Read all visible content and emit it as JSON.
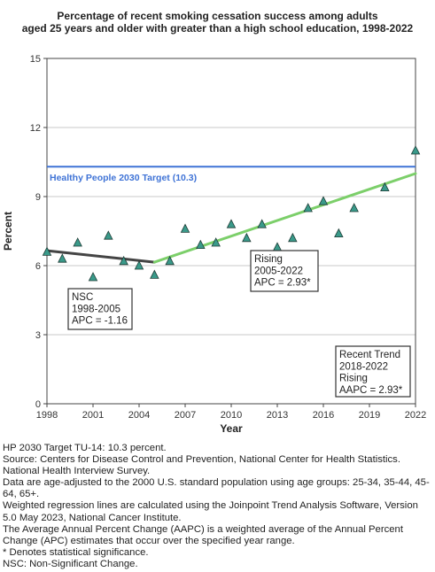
{
  "chart_data": {
    "type": "line",
    "title": "Percentage of recent smoking cessation success among adults aged 25 years and older with greater than a high school education, 1998-2022",
    "title_lines": [
      "Percentage of recent smoking cessation success among adults",
      "aged 25 years and older with greater than a high school education, 1998-2022"
    ],
    "xlabel": "Year",
    "ylabel": "Percent",
    "xlim": [
      1998,
      2022
    ],
    "ylim": [
      0,
      15
    ],
    "x_ticks": [
      "1998",
      "2001",
      "2004",
      "2007",
      "2010",
      "2013",
      "2016",
      "2019",
      "2022"
    ],
    "y_ticks": [
      "0",
      "3",
      "6",
      "9",
      "12",
      "15"
    ],
    "grid": "horizontal",
    "observed": {
      "marker": "triangle",
      "color": "#3a9a8a",
      "x": [
        1998,
        1999,
        2000,
        2001,
        2002,
        2003,
        2004,
        2005,
        2006,
        2007,
        2008,
        2009,
        2010,
        2011,
        2012,
        2013,
        2014,
        2015,
        2016,
        2017,
        2018,
        2020,
        2022
      ],
      "y": [
        6.6,
        6.3,
        7.0,
        5.5,
        7.3,
        6.2,
        6.0,
        5.6,
        6.2,
        7.6,
        6.9,
        7.0,
        7.8,
        7.2,
        7.8,
        6.8,
        7.2,
        8.5,
        8.8,
        7.4,
        8.5,
        9.4,
        11.0
      ]
    },
    "trend_segments": [
      {
        "x": [
          1998,
          2005
        ],
        "y": [
          6.65,
          6.15
        ],
        "color": "#444444"
      },
      {
        "x": [
          2005,
          2022
        ],
        "y": [
          6.15,
          10.0
        ],
        "color": "#7ccf6a"
      }
    ],
    "target": {
      "value": 10.3,
      "label": "Healthy People 2030 Target (10.3)",
      "color": "#3f73d6"
    },
    "annotations": [
      {
        "lines": [
          "NSC",
          "1998-2005",
          "APC = -1.16"
        ]
      },
      {
        "lines": [
          "Rising",
          "2005-2022",
          "APC =  2.93*"
        ]
      },
      {
        "lines": [
          "Recent Trend",
          "2018-2022",
          "Rising",
          "AAPC =  2.93*"
        ]
      }
    ]
  },
  "notes": [
    "HP 2030 Target TU-14: 10.3 percent.",
    "Source: Centers for Disease Control and Prevention, National Center for Health Statistics. National Health Interview Survey.",
    "Data are age-adjusted to the 2000 U.S. standard population using age groups: 25-34, 35-44, 45-64, 65+.",
    "Weighted regression lines are calculated using the Joinpoint Trend Analysis Software, Version 5.0 May 2023, National Cancer Institute.",
    "The Average Annual Percent Change (AAPC) is a weighted average of the Annual Percent Change (APC) estimates that occur over the specified year range.",
    "* Denotes statistical significance.",
    "NSC: Non-Significant Change."
  ]
}
